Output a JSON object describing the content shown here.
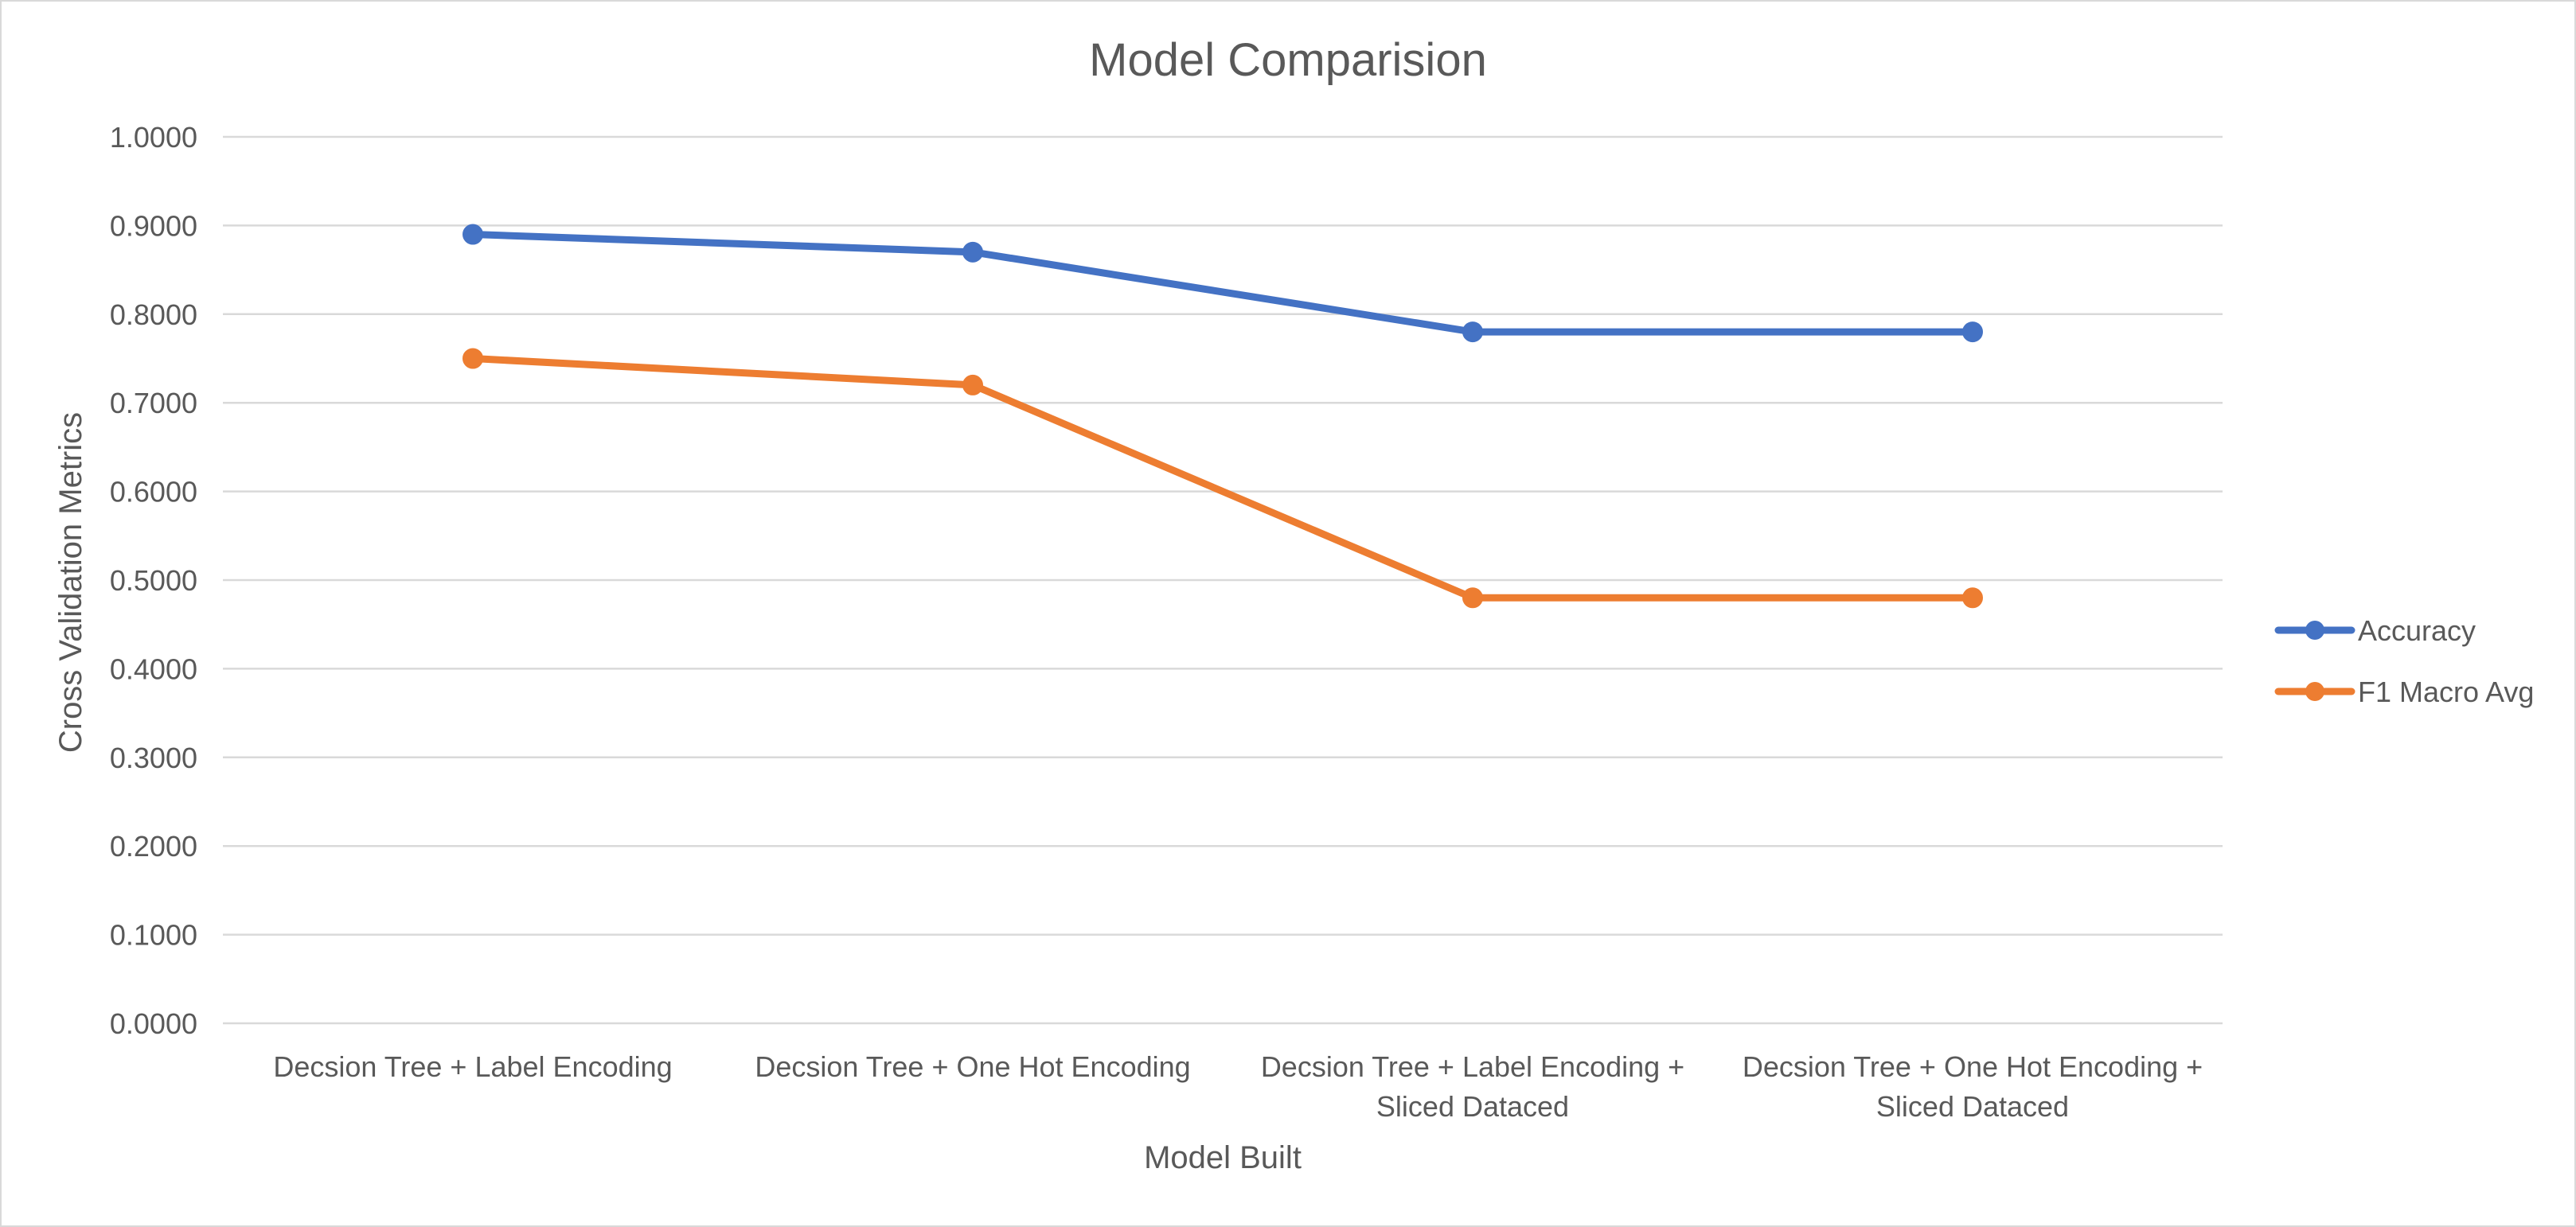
{
  "chart_data": {
    "type": "line",
    "title": "Model Comparision",
    "xlabel": "Model Built",
    "ylabel": "Cross Validation Metrics",
    "categories": [
      [
        "Decsion Tree + Label Encoding"
      ],
      [
        "Decsion Tree + One Hot Encoding"
      ],
      [
        "Decsion Tree + Label Encoding +",
        "Sliced Dataced"
      ],
      [
        "Decsion Tree + One Hot Encoding +",
        "Sliced Dataced"
      ]
    ],
    "ylim": [
      0,
      1
    ],
    "ytick_step": 0.1,
    "ytick_labels": [
      "0.0000",
      "0.1000",
      "0.2000",
      "0.3000",
      "0.4000",
      "0.5000",
      "0.6000",
      "0.7000",
      "0.8000",
      "0.9000",
      "1.0000"
    ],
    "grid": true,
    "legend_position": "right",
    "series": [
      {
        "name": "Accuracy",
        "color": "#4472c4",
        "values": [
          0.89,
          0.87,
          0.78,
          0.78
        ]
      },
      {
        "name": "F1 Macro Avg",
        "color": "#ed7d31",
        "values": [
          0.75,
          0.72,
          0.48,
          0.48
        ]
      }
    ]
  }
}
